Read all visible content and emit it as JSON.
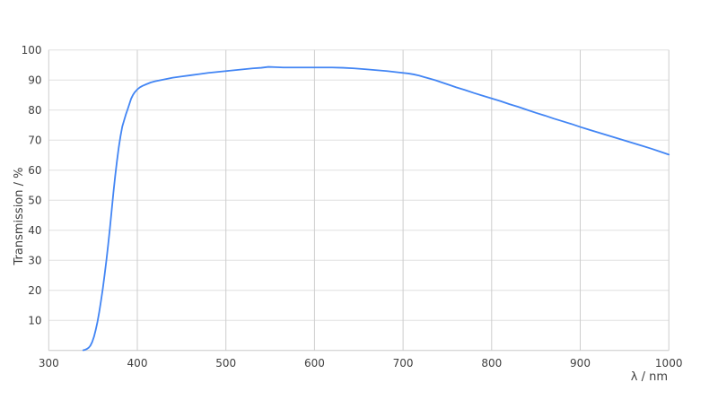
{
  "chart_data": {
    "type": "line",
    "title": "",
    "xlabel": "λ / nm",
    "ylabel": "Transmission / %",
    "xlim": [
      300,
      1000
    ],
    "ylim": [
      0,
      100
    ],
    "x_ticks": [
      300,
      400,
      500,
      600,
      700,
      800,
      900,
      1000
    ],
    "y_ticks": [
      10,
      20,
      30,
      40,
      50,
      60,
      70,
      80,
      90,
      100
    ],
    "grid": true,
    "legend": "none",
    "series": [
      {
        "name": "Transmission",
        "color": "#4285f4",
        "x": [
          339,
          341,
          343,
          345,
          347,
          349,
          351,
          353,
          355,
          357,
          359,
          361,
          363,
          365,
          367,
          369,
          371,
          373,
          375,
          377,
          379,
          381,
          383,
          385,
          387,
          389,
          391,
          393,
          395,
          397,
          400,
          403,
          406,
          410,
          415,
          420,
          425,
          430,
          435,
          440,
          450,
          460,
          470,
          480,
          490,
          500,
          510,
          520,
          530,
          540,
          548,
          556,
          565,
          580,
          600,
          620,
          632,
          645,
          658,
          670,
          682,
          694,
          706,
          712,
          718,
          724,
          730,
          737,
          744,
          752,
          760,
          770,
          780,
          790,
          800,
          810,
          820,
          830,
          840,
          850,
          860,
          870,
          880,
          890,
          900,
          910,
          920,
          930,
          940,
          950,
          960,
          970,
          980,
          990,
          1000
        ],
        "y": [
          0.1,
          0.25,
          0.5,
          0.9,
          1.6,
          2.8,
          4.5,
          6.8,
          9.5,
          12.8,
          16.5,
          20.5,
          25,
          29.8,
          35,
          40.5,
          46.5,
          52.5,
          58,
          63,
          67.5,
          71.3,
          74.5,
          76.5,
          78.5,
          80.2,
          82,
          83.8,
          85,
          85.9,
          86.9,
          87.6,
          88.1,
          88.6,
          89.2,
          89.6,
          89.9,
          90.2,
          90.5,
          90.8,
          91.2,
          91.6,
          92,
          92.4,
          92.7,
          93,
          93.3,
          93.6,
          93.9,
          94.1,
          94.4,
          94.3,
          94.2,
          94.2,
          94.2,
          94.2,
          94.1,
          93.9,
          93.6,
          93.3,
          93,
          92.6,
          92.2,
          91.9,
          91.5,
          91,
          90.5,
          89.9,
          89.2,
          88.4,
          87.6,
          86.7,
          85.7,
          84.8,
          83.9,
          83,
          82,
          81.1,
          80.1,
          79.1,
          78.2,
          77.2,
          76.3,
          75.4,
          74.4,
          73.5,
          72.6,
          71.7,
          70.8,
          69.9,
          69,
          68.1,
          67.2,
          66.2,
          65.2
        ]
      }
    ]
  },
  "colors": {
    "line": "#4285f4",
    "grid_horizontal": "#e0e0e0",
    "grid_vertical": "#cdcdcd",
    "axis_line": "#c9c9c9",
    "tick_text": "#3f3f3f",
    "axis_title_text": "#3f3f3f",
    "background": "#ffffff"
  }
}
